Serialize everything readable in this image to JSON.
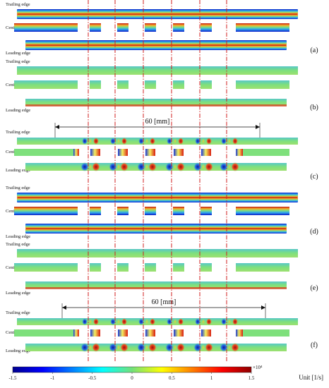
{
  "colors": {
    "low": "#00008f",
    "mid": "#73e07a",
    "high": "#8f0000",
    "divider": "#d11f1f"
  },
  "row_labels": {
    "trailing": "Trailing edge",
    "center": "Center",
    "leading": "Leading edge"
  },
  "panels": [
    {
      "label": "(a)",
      "style": "edge",
      "dimension": ""
    },
    {
      "label": "(b)",
      "style": "smooth",
      "dimension": ""
    },
    {
      "label": "(c)",
      "style": "spots",
      "dimension": "60 [mm]"
    },
    {
      "label": "(d)",
      "style": "edge",
      "dimension": ""
    },
    {
      "label": "(e)",
      "style": "smooth",
      "dimension": ""
    },
    {
      "label": "(f)",
      "style": "spots",
      "dimension": "60 [mm]"
    }
  ],
  "colorbar": {
    "ticks": [
      "-1.5",
      "-1",
      "-0.5",
      "0",
      "0.5",
      "1",
      "1.5"
    ],
    "exponent": "×10⁴",
    "unit": "Unit [1/s]"
  }
}
